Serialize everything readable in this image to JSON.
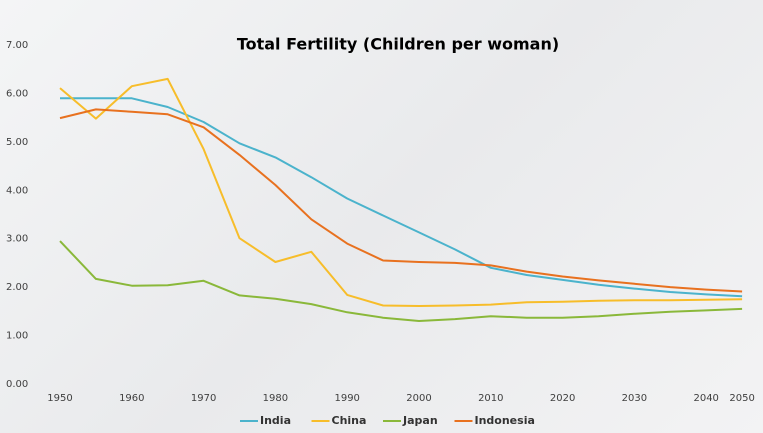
{
  "chart_data": {
    "type": "line",
    "title": "Total Fertility (Children per woman)",
    "categories": [
      "1950",
      null,
      "1960",
      null,
      "1970",
      null,
      "1980",
      null,
      "1990",
      null,
      "2000",
      null,
      "2010",
      null,
      "2020",
      null,
      "2030",
      null,
      "2040",
      "2050"
    ],
    "series": [
      {
        "name": "India",
        "color": "#4bb3cc",
        "values": [
          5.9,
          5.9,
          5.9,
          5.72,
          5.41,
          4.97,
          4.68,
          4.27,
          3.83,
          3.48,
          3.13,
          2.78,
          2.4,
          2.25,
          2.15,
          2.05,
          1.97,
          1.9,
          1.85,
          1.81
        ]
      },
      {
        "name": "China",
        "color": "#f7bd2a",
        "values": [
          6.11,
          5.48,
          6.15,
          6.3,
          4.85,
          3.01,
          2.52,
          2.73,
          1.84,
          1.62,
          1.61,
          1.62,
          1.64,
          1.69,
          1.7,
          1.72,
          1.73,
          1.73,
          1.74,
          1.75
        ]
      },
      {
        "name": "Japan",
        "color": "#8ab83a",
        "values": [
          2.95,
          2.17,
          2.03,
          2.04,
          2.13,
          1.83,
          1.76,
          1.65,
          1.48,
          1.37,
          1.3,
          1.34,
          1.4,
          1.37,
          1.37,
          1.4,
          1.45,
          1.49,
          1.52,
          1.55
        ]
      },
      {
        "name": "Indonesia",
        "color": "#e8711f",
        "values": [
          5.49,
          5.67,
          5.62,
          5.57,
          5.3,
          4.73,
          4.11,
          3.4,
          2.9,
          2.55,
          2.52,
          2.5,
          2.45,
          2.32,
          2.22,
          2.14,
          2.07,
          2.0,
          1.95,
          1.91
        ]
      }
    ],
    "ylim": [
      0,
      7
    ],
    "yticks": [
      {
        "value": 0,
        "label": "0.00"
      },
      {
        "value": 1,
        "label": "1.00"
      },
      {
        "value": 2,
        "label": "2.00"
      },
      {
        "value": 3,
        "label": "3.00"
      },
      {
        "value": 4,
        "label": "4.00"
      },
      {
        "value": 5,
        "label": "5.00"
      },
      {
        "value": 6,
        "label": "6.00"
      },
      {
        "value": 7,
        "label": "7.00"
      }
    ],
    "legend": "bottom"
  }
}
